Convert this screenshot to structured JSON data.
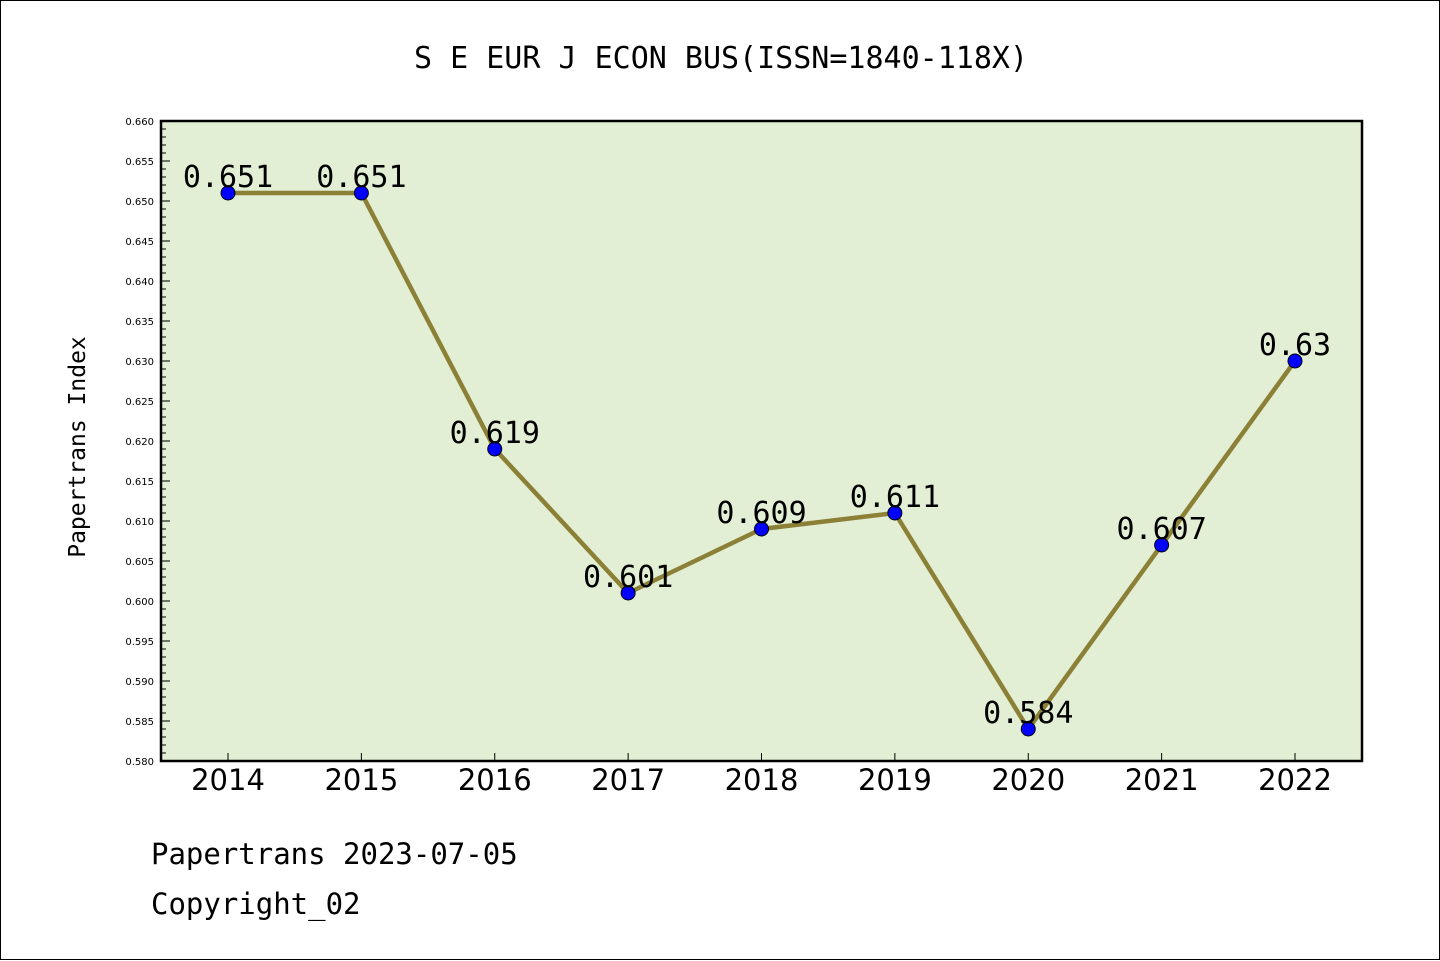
{
  "chart_data": {
    "type": "line",
    "title": "S E EUR J ECON BUS(ISSN=1840-118X)",
    "ylabel": "Papertrans Index",
    "xlabel": "",
    "categories": [
      "2014",
      "2015",
      "2016",
      "2017",
      "2018",
      "2019",
      "2020",
      "2021",
      "2022"
    ],
    "values": [
      0.651,
      0.651,
      0.619,
      0.601,
      0.609,
      0.611,
      0.584,
      0.607,
      0.63
    ],
    "data_labels": [
      "0.651",
      "0.651",
      "0.619",
      "0.601",
      "0.609",
      "0.611",
      "0.584",
      "0.607",
      "0.63"
    ],
    "ylim": [
      0.58,
      0.66
    ],
    "yticks": [
      "0.580",
      "0.585",
      "0.590",
      "0.595",
      "0.600",
      "0.605",
      "0.610",
      "0.615",
      "0.620",
      "0.625",
      "0.630",
      "0.635",
      "0.640",
      "0.645",
      "0.650",
      "0.655",
      "0.660"
    ],
    "grid": false,
    "legend": "none",
    "colors": {
      "plot_background": "#e2efd4",
      "line": "#8b8036",
      "marker": "#0000ff"
    }
  },
  "footer": {
    "source_line": "Papertrans 2023-07-05",
    "copyright": "Copyright_02"
  }
}
